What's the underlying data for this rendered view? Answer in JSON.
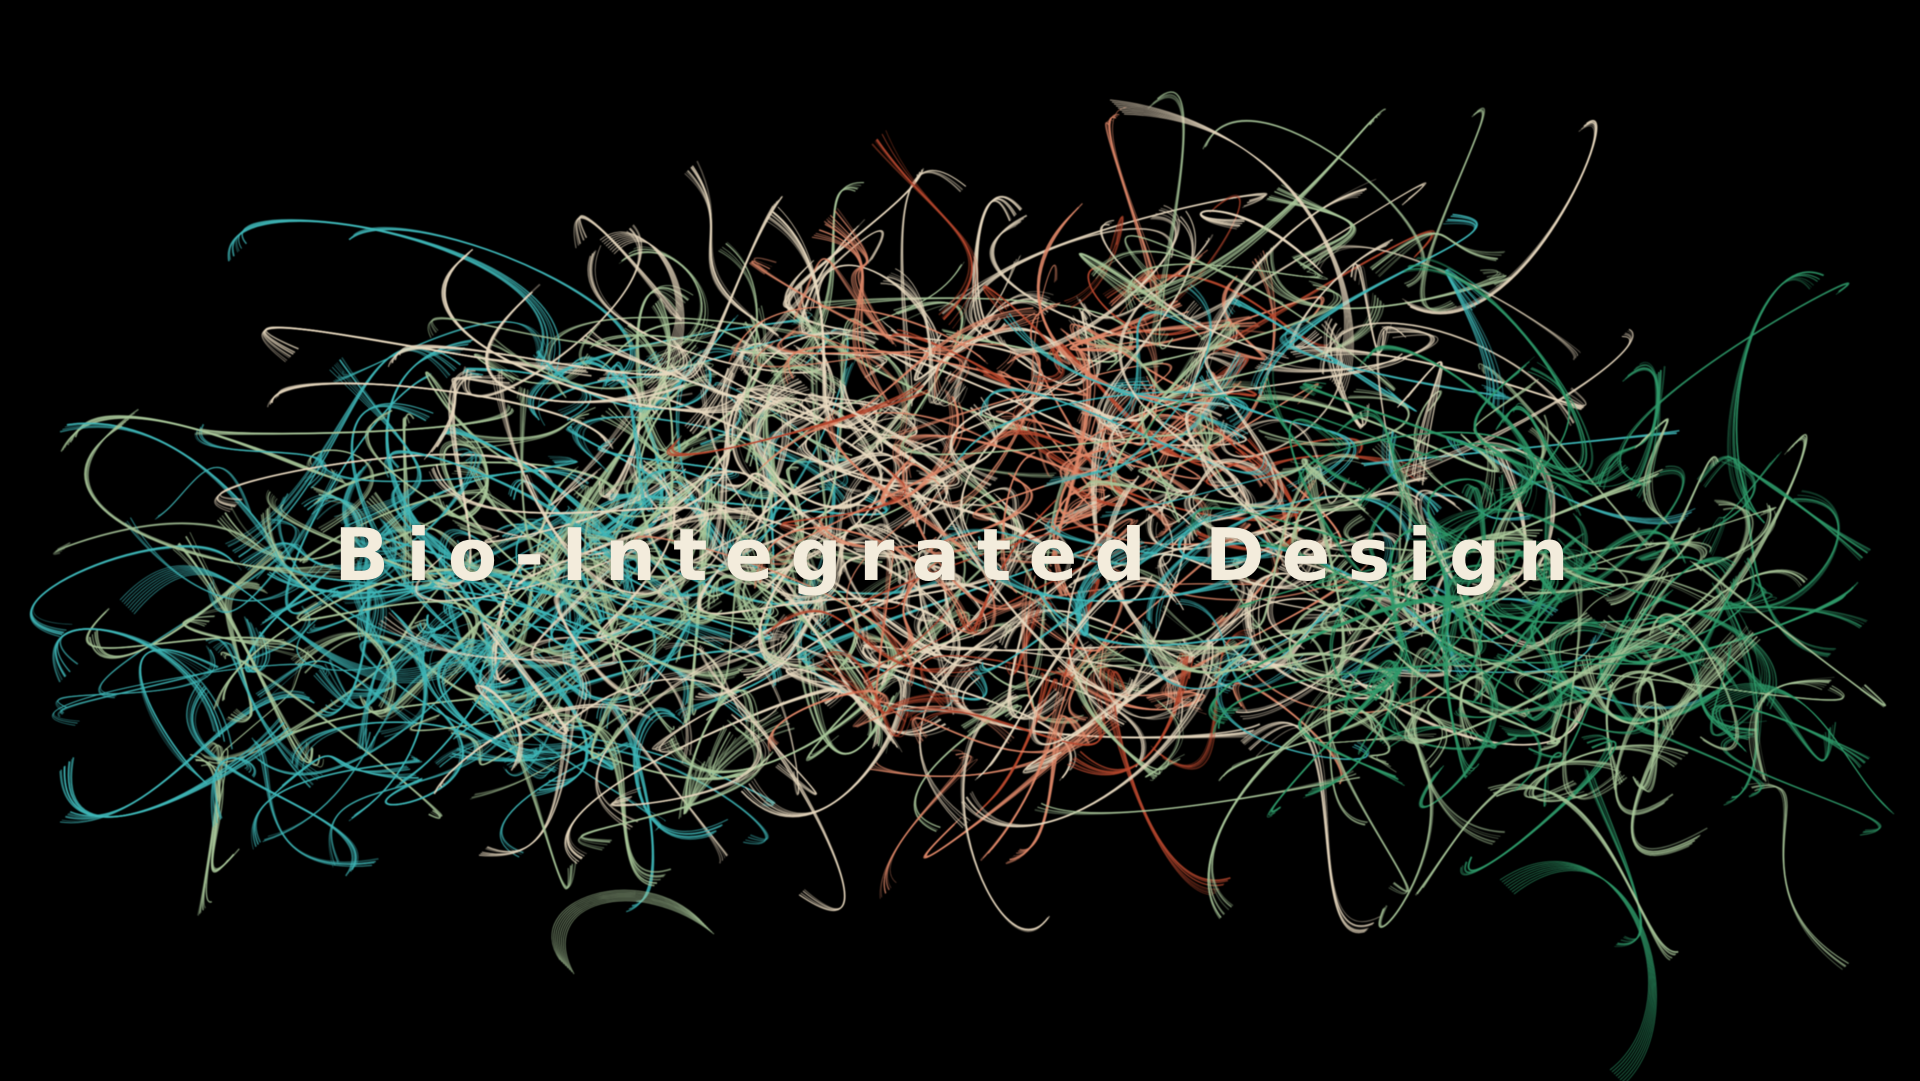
{
  "hero": {
    "title": "Bio-Integrated Design"
  },
  "artwork": {
    "palette": {
      "background": "#000000",
      "teal": "#3fb7b8",
      "sage": "#a9c79a",
      "cream": "#e8d9bf",
      "salmon": "#e0896a",
      "rust": "#b8482e",
      "green": "#2f9a6a"
    }
  }
}
